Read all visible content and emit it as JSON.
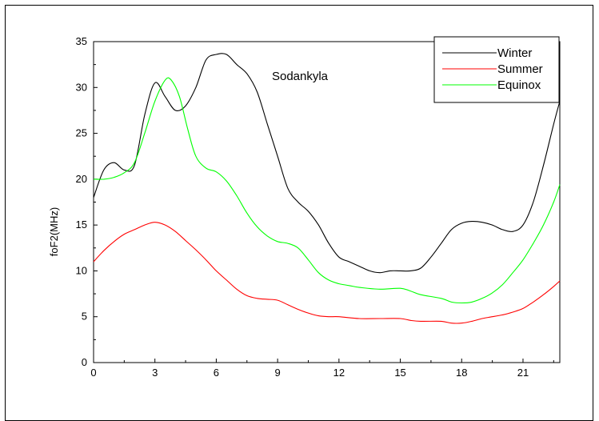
{
  "chart_data": {
    "type": "line",
    "title": "Sodankyla",
    "xlabel": "",
    "ylabel": "foF2(MHz)",
    "xlim": [
      0,
      22.8
    ],
    "ylim": [
      0,
      35
    ],
    "xticks": [
      0,
      3,
      6,
      9,
      12,
      15,
      18,
      21
    ],
    "yticks": [
      0,
      5,
      10,
      15,
      20,
      25,
      30,
      35
    ],
    "grid": false,
    "legend_position": "top-right",
    "series": [
      {
        "name": "Winter",
        "color": "#000000",
        "points": [
          [
            0,
            18
          ],
          [
            0.5,
            21
          ],
          [
            1,
            21.8
          ],
          [
            1.5,
            21
          ],
          [
            2,
            21.5
          ],
          [
            2.5,
            27
          ],
          [
            3,
            30.5
          ],
          [
            3.5,
            29
          ],
          [
            4,
            27.5
          ],
          [
            4.5,
            28
          ],
          [
            5,
            30
          ],
          [
            5.5,
            33
          ],
          [
            6,
            33.6
          ],
          [
            6.5,
            33.6
          ],
          [
            7,
            32.5
          ],
          [
            7.5,
            31.5
          ],
          [
            8,
            29.5
          ],
          [
            8.5,
            26
          ],
          [
            9,
            22.5
          ],
          [
            9.5,
            19
          ],
          [
            10,
            17.5
          ],
          [
            10.5,
            16.5
          ],
          [
            11,
            15
          ],
          [
            11.5,
            13
          ],
          [
            12,
            11.5
          ],
          [
            12.5,
            11
          ],
          [
            13,
            10.5
          ],
          [
            13.5,
            10
          ],
          [
            14,
            9.8
          ],
          [
            14.5,
            10
          ],
          [
            15,
            10
          ],
          [
            15.5,
            10
          ],
          [
            16,
            10.3
          ],
          [
            16.5,
            11.5
          ],
          [
            17,
            13
          ],
          [
            17.5,
            14.5
          ],
          [
            18,
            15.2
          ],
          [
            18.5,
            15.4
          ],
          [
            19,
            15.3
          ],
          [
            19.5,
            15
          ],
          [
            20,
            14.5
          ],
          [
            20.5,
            14.3
          ],
          [
            21,
            15
          ],
          [
            21.5,
            17.5
          ],
          [
            22,
            21.5
          ],
          [
            22.5,
            26
          ],
          [
            22.8,
            28.5
          ]
        ]
      },
      {
        "name": "Summer",
        "color": "#ff0000",
        "points": [
          [
            0,
            11
          ],
          [
            0.5,
            12.2
          ],
          [
            1,
            13.2
          ],
          [
            1.5,
            14
          ],
          [
            2,
            14.5
          ],
          [
            2.5,
            15
          ],
          [
            3,
            15.3
          ],
          [
            3.5,
            15
          ],
          [
            4,
            14.3
          ],
          [
            4.5,
            13.3
          ],
          [
            5,
            12.3
          ],
          [
            5.5,
            11.2
          ],
          [
            6,
            10
          ],
          [
            6.5,
            9
          ],
          [
            7,
            8
          ],
          [
            7.5,
            7.3
          ],
          [
            8,
            7
          ],
          [
            8.5,
            6.9
          ],
          [
            9,
            6.8
          ],
          [
            9.5,
            6.3
          ],
          [
            10,
            5.8
          ],
          [
            10.5,
            5.4
          ],
          [
            11,
            5.1
          ],
          [
            11.5,
            5
          ],
          [
            12,
            5
          ],
          [
            13,
            4.8
          ],
          [
            14,
            4.8
          ],
          [
            15,
            4.8
          ],
          [
            15.5,
            4.6
          ],
          [
            16,
            4.5
          ],
          [
            17,
            4.5
          ],
          [
            17.5,
            4.3
          ],
          [
            18,
            4.3
          ],
          [
            18.5,
            4.5
          ],
          [
            19,
            4.8
          ],
          [
            19.5,
            5
          ],
          [
            20,
            5.2
          ],
          [
            20.5,
            5.5
          ],
          [
            21,
            5.9
          ],
          [
            21.5,
            6.6
          ],
          [
            22,
            7.4
          ],
          [
            22.5,
            8.3
          ],
          [
            22.8,
            8.9
          ]
        ]
      },
      {
        "name": "Equinox",
        "color": "#00ff00",
        "points": [
          [
            0,
            20
          ],
          [
            0.5,
            20
          ],
          [
            1,
            20.2
          ],
          [
            1.5,
            20.7
          ],
          [
            2,
            21.8
          ],
          [
            2.5,
            25
          ],
          [
            3,
            28.5
          ],
          [
            3.5,
            30.8
          ],
          [
            3.8,
            30.8
          ],
          [
            4.2,
            29
          ],
          [
            4.6,
            25.5
          ],
          [
            5,
            22.5
          ],
          [
            5.5,
            21.2
          ],
          [
            6,
            20.8
          ],
          [
            6.5,
            19.8
          ],
          [
            7,
            18.2
          ],
          [
            7.5,
            16.3
          ],
          [
            8,
            14.8
          ],
          [
            8.5,
            13.8
          ],
          [
            9,
            13.2
          ],
          [
            9.5,
            13
          ],
          [
            10,
            12.5
          ],
          [
            10.5,
            11.2
          ],
          [
            11,
            9.8
          ],
          [
            11.5,
            9
          ],
          [
            12,
            8.6
          ],
          [
            12.5,
            8.4
          ],
          [
            13,
            8.2
          ],
          [
            14,
            8
          ],
          [
            15,
            8.1
          ],
          [
            15.5,
            7.8
          ],
          [
            16,
            7.4
          ],
          [
            17,
            7
          ],
          [
            17.5,
            6.6
          ],
          [
            18,
            6.5
          ],
          [
            18.5,
            6.6
          ],
          [
            19,
            7
          ],
          [
            19.5,
            7.6
          ],
          [
            20,
            8.5
          ],
          [
            20.5,
            9.8
          ],
          [
            21,
            11.2
          ],
          [
            21.5,
            13
          ],
          [
            22,
            15
          ],
          [
            22.5,
            17.5
          ],
          [
            22.8,
            19.4
          ]
        ]
      }
    ]
  }
}
